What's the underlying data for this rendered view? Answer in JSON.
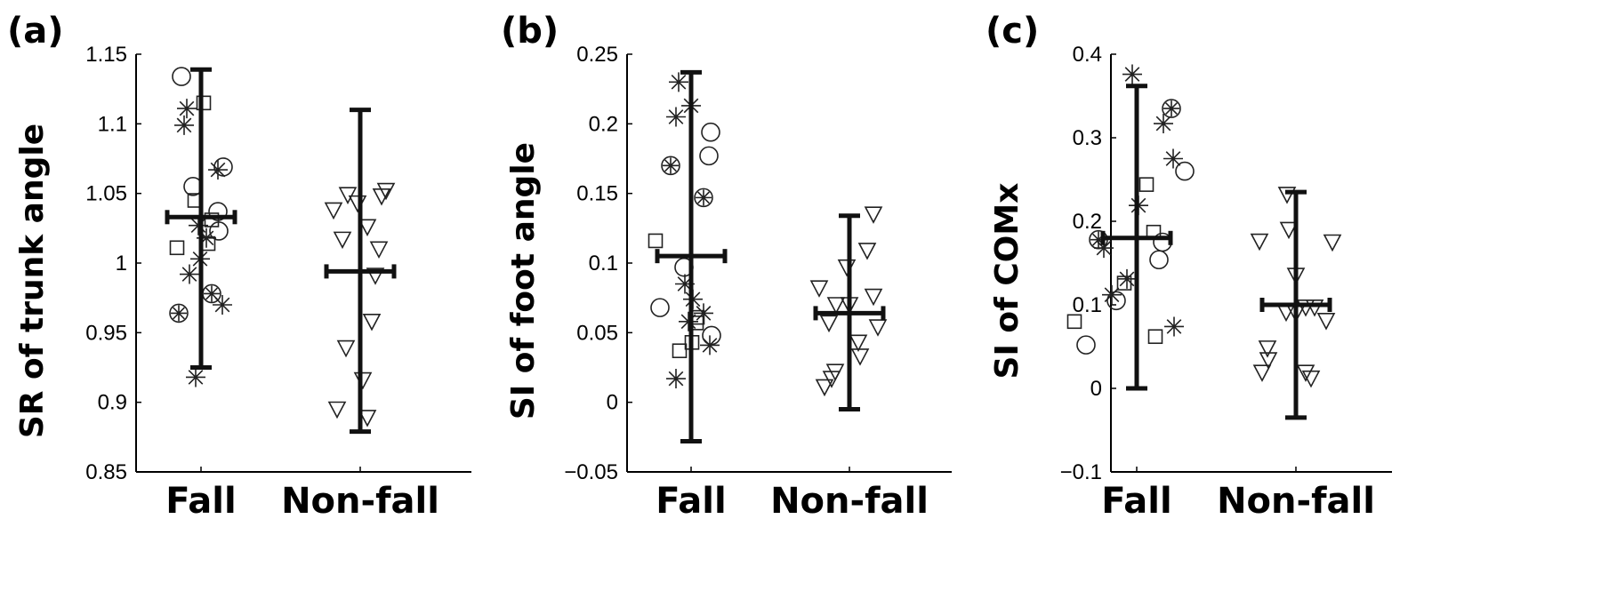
{
  "chart_data": [
    {
      "type": "scatter",
      "panel_label": "(a)",
      "ylabel": "SR of trunk angle",
      "xlabel": "",
      "categories": [
        "Fall",
        "Non-fall"
      ],
      "ylim": [
        0.85,
        1.15
      ],
      "yticks": [
        0.85,
        0.9,
        0.95,
        1,
        1.05,
        1.1,
        1.15
      ],
      "ytick_labels": [
        "0.85",
        "0.9",
        "0.95",
        "1",
        "1.05",
        "1.1",
        "1.15"
      ],
      "summary": [
        {
          "category": "Fall",
          "mean": 1.033,
          "low": 0.925,
          "high": 1.139
        },
        {
          "category": "Non-fall",
          "mean": 0.994,
          "low": 0.879,
          "high": 1.11
        }
      ],
      "points": [
        {
          "group": 0,
          "jitter": -0.22,
          "y": 1.134,
          "marker": "circle"
        },
        {
          "group": 0,
          "jitter": -0.16,
          "y": 1.111,
          "marker": "star"
        },
        {
          "group": 0,
          "jitter": -0.19,
          "y": 1.099,
          "marker": "star"
        },
        {
          "group": 0,
          "jitter": 0.03,
          "y": 1.115,
          "marker": "square"
        },
        {
          "group": 0,
          "jitter": 0.25,
          "y": 1.069,
          "marker": "circle"
        },
        {
          "group": 0,
          "jitter": 0.19,
          "y": 1.067,
          "marker": "star"
        },
        {
          "group": 0,
          "jitter": -0.09,
          "y": 1.055,
          "marker": "circle"
        },
        {
          "group": 0,
          "jitter": -0.07,
          "y": 1.045,
          "marker": "square"
        },
        {
          "group": 0,
          "jitter": 0.19,
          "y": 1.037,
          "marker": "circle"
        },
        {
          "group": 0,
          "jitter": 0.12,
          "y": 1.031,
          "marker": "square"
        },
        {
          "group": 0,
          "jitter": -0.03,
          "y": 1.027,
          "marker": "star"
        },
        {
          "group": 0,
          "jitter": 0.2,
          "y": 1.023,
          "marker": "circle"
        },
        {
          "group": 0,
          "jitter": 0.06,
          "y": 1.018,
          "marker": "star"
        },
        {
          "group": 0,
          "jitter": 0.08,
          "y": 1.014,
          "marker": "square"
        },
        {
          "group": 0,
          "jitter": -0.27,
          "y": 1.011,
          "marker": "square"
        },
        {
          "group": 0,
          "jitter": -0.01,
          "y": 1.003,
          "marker": "star"
        },
        {
          "group": 0,
          "jitter": -0.13,
          "y": 0.992,
          "marker": "star"
        },
        {
          "group": 0,
          "jitter": 0.12,
          "y": 0.978,
          "marker": "circle-star"
        },
        {
          "group": 0,
          "jitter": 0.24,
          "y": 0.97,
          "marker": "star"
        },
        {
          "group": 0,
          "jitter": -0.25,
          "y": 0.964,
          "marker": "circle-star"
        },
        {
          "group": 0,
          "jitter": -0.06,
          "y": 0.918,
          "marker": "star"
        },
        {
          "group": 1,
          "jitter": -0.14,
          "y": 1.049,
          "marker": "triangle-down"
        },
        {
          "group": 1,
          "jitter": -0.03,
          "y": 1.043,
          "marker": "triangle-down"
        },
        {
          "group": 1,
          "jitter": 0.24,
          "y": 1.048,
          "marker": "triangle-down"
        },
        {
          "group": 1,
          "jitter": 0.29,
          "y": 1.052,
          "marker": "triangle-down"
        },
        {
          "group": 1,
          "jitter": -0.3,
          "y": 1.038,
          "marker": "triangle-down"
        },
        {
          "group": 1,
          "jitter": 0.08,
          "y": 1.026,
          "marker": "triangle-down"
        },
        {
          "group": 1,
          "jitter": -0.2,
          "y": 1.017,
          "marker": "triangle-down"
        },
        {
          "group": 1,
          "jitter": 0.21,
          "y": 1.01,
          "marker": "triangle-down"
        },
        {
          "group": 1,
          "jitter": 0.17,
          "y": 0.991,
          "marker": "triangle-down"
        },
        {
          "group": 1,
          "jitter": 0.13,
          "y": 0.958,
          "marker": "triangle-down"
        },
        {
          "group": 1,
          "jitter": -0.16,
          "y": 0.939,
          "marker": "triangle-down"
        },
        {
          "group": 1,
          "jitter": 0.03,
          "y": 0.916,
          "marker": "triangle-down"
        },
        {
          "group": 1,
          "jitter": -0.26,
          "y": 0.895,
          "marker": "triangle-down"
        },
        {
          "group": 1,
          "jitter": 0.08,
          "y": 0.889,
          "marker": "triangle-down"
        }
      ]
    },
    {
      "type": "scatter",
      "panel_label": "(b)",
      "ylabel": "SI of foot angle",
      "xlabel": "",
      "categories": [
        "Fall",
        "Non-fall"
      ],
      "ylim": [
        -0.05,
        0.25
      ],
      "yticks": [
        -0.05,
        0,
        0.05,
        0.1,
        0.15,
        0.2,
        0.25
      ],
      "ytick_labels": [
        "−0.05",
        "0",
        "0.05",
        "0.1",
        "0.15",
        "0.2",
        "0.25"
      ],
      "summary": [
        {
          "category": "Fall",
          "mean": 0.105,
          "low": -0.028,
          "high": 0.237
        },
        {
          "category": "Non-fall",
          "mean": 0.064,
          "low": -0.005,
          "high": 0.134
        }
      ],
      "points": [
        {
          "group": 0,
          "jitter": -0.14,
          "y": 0.23,
          "marker": "star"
        },
        {
          "group": 0,
          "jitter": -0.17,
          "y": 0.205,
          "marker": "star"
        },
        {
          "group": 0,
          "jitter": 0.0,
          "y": 0.213,
          "marker": "star"
        },
        {
          "group": 0,
          "jitter": 0.22,
          "y": 0.194,
          "marker": "circle"
        },
        {
          "group": 0,
          "jitter": 0.2,
          "y": 0.177,
          "marker": "circle"
        },
        {
          "group": 0,
          "jitter": -0.23,
          "y": 0.17,
          "marker": "circle-star"
        },
        {
          "group": 0,
          "jitter": 0.14,
          "y": 0.147,
          "marker": "circle-star"
        },
        {
          "group": 0,
          "jitter": -0.4,
          "y": 0.116,
          "marker": "square"
        },
        {
          "group": 0,
          "jitter": -0.08,
          "y": 0.097,
          "marker": "circle"
        },
        {
          "group": 0,
          "jitter": -0.07,
          "y": 0.085,
          "marker": "star"
        },
        {
          "group": 0,
          "jitter": 0.02,
          "y": 0.074,
          "marker": "star"
        },
        {
          "group": 0,
          "jitter": -0.35,
          "y": 0.068,
          "marker": "circle"
        },
        {
          "group": 0,
          "jitter": 0.14,
          "y": 0.064,
          "marker": "star"
        },
        {
          "group": 0,
          "jitter": 0.07,
          "y": 0.061,
          "marker": "square"
        },
        {
          "group": 0,
          "jitter": -0.03,
          "y": 0.058,
          "marker": "star"
        },
        {
          "group": 0,
          "jitter": 0.06,
          "y": 0.057,
          "marker": "square"
        },
        {
          "group": 0,
          "jitter": 0.23,
          "y": 0.048,
          "marker": "circle"
        },
        {
          "group": 0,
          "jitter": 0.01,
          "y": 0.043,
          "marker": "square"
        },
        {
          "group": 0,
          "jitter": 0.21,
          "y": 0.041,
          "marker": "star"
        },
        {
          "group": 0,
          "jitter": -0.13,
          "y": 0.037,
          "marker": "square"
        },
        {
          "group": 0,
          "jitter": -0.17,
          "y": 0.017,
          "marker": "star"
        },
        {
          "group": 1,
          "jitter": 0.27,
          "y": 0.135,
          "marker": "triangle-down"
        },
        {
          "group": 1,
          "jitter": 0.2,
          "y": 0.109,
          "marker": "triangle-down"
        },
        {
          "group": 1,
          "jitter": -0.03,
          "y": 0.097,
          "marker": "triangle-down"
        },
        {
          "group": 1,
          "jitter": -0.34,
          "y": 0.082,
          "marker": "triangle-down"
        },
        {
          "group": 1,
          "jitter": 0.27,
          "y": 0.076,
          "marker": "triangle-down"
        },
        {
          "group": 1,
          "jitter": -0.15,
          "y": 0.07,
          "marker": "triangle-down"
        },
        {
          "group": 1,
          "jitter": 0.0,
          "y": 0.07,
          "marker": "triangle-down"
        },
        {
          "group": 1,
          "jitter": -0.23,
          "y": 0.057,
          "marker": "triangle-down"
        },
        {
          "group": 1,
          "jitter": 0.32,
          "y": 0.054,
          "marker": "triangle-down"
        },
        {
          "group": 1,
          "jitter": 0.1,
          "y": 0.043,
          "marker": "triangle-down"
        },
        {
          "group": 1,
          "jitter": 0.12,
          "y": 0.033,
          "marker": "triangle-down"
        },
        {
          "group": 1,
          "jitter": -0.16,
          "y": 0.022,
          "marker": "triangle-down"
        },
        {
          "group": 1,
          "jitter": -0.2,
          "y": 0.017,
          "marker": "triangle-down"
        },
        {
          "group": 1,
          "jitter": -0.28,
          "y": 0.011,
          "marker": "triangle-down"
        }
      ]
    },
    {
      "type": "scatter",
      "panel_label": "(c)",
      "ylabel": "SI of COMx",
      "xlabel": "",
      "categories": [
        "Fall",
        "Non-fall"
      ],
      "ylim": [
        -0.1,
        0.4
      ],
      "yticks": [
        -0.1,
        0,
        0.1,
        0.2,
        0.3,
        0.4
      ],
      "ytick_labels": [
        "−0.1",
        "0",
        "0.1",
        "0.2",
        "0.3",
        "0.4"
      ],
      "summary": [
        {
          "category": "Fall",
          "mean": 0.18,
          "low": 0.0,
          "high": 0.362
        },
        {
          "category": "Non-fall",
          "mean": 0.1,
          "low": -0.035,
          "high": 0.235
        }
      ],
      "points": [
        {
          "group": 0,
          "jitter": -0.05,
          "y": 0.376,
          "marker": "star"
        },
        {
          "group": 0,
          "jitter": 0.39,
          "y": 0.335,
          "marker": "circle-star"
        },
        {
          "group": 0,
          "jitter": 0.3,
          "y": 0.317,
          "marker": "star"
        },
        {
          "group": 0,
          "jitter": 0.41,
          "y": 0.275,
          "marker": "star"
        },
        {
          "group": 0,
          "jitter": 0.54,
          "y": 0.26,
          "marker": "circle"
        },
        {
          "group": 0,
          "jitter": 0.11,
          "y": 0.244,
          "marker": "square"
        },
        {
          "group": 0,
          "jitter": 0.02,
          "y": 0.219,
          "marker": "star"
        },
        {
          "group": 0,
          "jitter": 0.19,
          "y": 0.187,
          "marker": "square"
        },
        {
          "group": 0,
          "jitter": -0.43,
          "y": 0.178,
          "marker": "circle-star"
        },
        {
          "group": 0,
          "jitter": 0.29,
          "y": 0.175,
          "marker": "circle"
        },
        {
          "group": 0,
          "jitter": -0.37,
          "y": 0.168,
          "marker": "star"
        },
        {
          "group": 0,
          "jitter": 0.25,
          "y": 0.154,
          "marker": "circle"
        },
        {
          "group": 0,
          "jitter": -0.11,
          "y": 0.131,
          "marker": "star"
        },
        {
          "group": 0,
          "jitter": -0.14,
          "y": 0.126,
          "marker": "square"
        },
        {
          "group": 0,
          "jitter": -0.28,
          "y": 0.112,
          "marker": "star"
        },
        {
          "group": 0,
          "jitter": -0.23,
          "y": 0.105,
          "marker": "circle"
        },
        {
          "group": 0,
          "jitter": -0.7,
          "y": 0.08,
          "marker": "square"
        },
        {
          "group": 0,
          "jitter": 0.42,
          "y": 0.074,
          "marker": "star"
        },
        {
          "group": 0,
          "jitter": 0.21,
          "y": 0.062,
          "marker": "square"
        },
        {
          "group": 0,
          "jitter": -0.57,
          "y": 0.052,
          "marker": "circle"
        },
        {
          "group": 1,
          "jitter": -0.1,
          "y": 0.232,
          "marker": "triangle-down"
        },
        {
          "group": 1,
          "jitter": -0.08,
          "y": 0.19,
          "marker": "triangle-down"
        },
        {
          "group": 1,
          "jitter": -0.41,
          "y": 0.176,
          "marker": "triangle-down"
        },
        {
          "group": 1,
          "jitter": 0.41,
          "y": 0.175,
          "marker": "triangle-down"
        },
        {
          "group": 1,
          "jitter": 0.0,
          "y": 0.135,
          "marker": "triangle-down"
        },
        {
          "group": 1,
          "jitter": 0.11,
          "y": 0.097,
          "marker": "triangle-down"
        },
        {
          "group": 1,
          "jitter": 0.21,
          "y": 0.097,
          "marker": "triangle-down"
        },
        {
          "group": 1,
          "jitter": -0.11,
          "y": 0.091,
          "marker": "triangle-down"
        },
        {
          "group": 1,
          "jitter": 0.0,
          "y": 0.09,
          "marker": "triangle-down"
        },
        {
          "group": 1,
          "jitter": 0.34,
          "y": 0.081,
          "marker": "triangle-down"
        },
        {
          "group": 1,
          "jitter": -0.32,
          "y": 0.048,
          "marker": "triangle-down"
        },
        {
          "group": 1,
          "jitter": -0.31,
          "y": 0.034,
          "marker": "triangle-down"
        },
        {
          "group": 1,
          "jitter": -0.38,
          "y": 0.019,
          "marker": "triangle-down"
        },
        {
          "group": 1,
          "jitter": 0.11,
          "y": 0.019,
          "marker": "triangle-down"
        },
        {
          "group": 1,
          "jitter": 0.17,
          "y": 0.012,
          "marker": "triangle-down"
        }
      ]
    }
  ]
}
